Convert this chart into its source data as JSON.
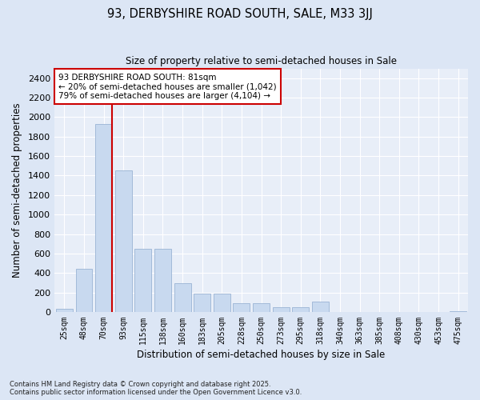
{
  "title": "93, DERBYSHIRE ROAD SOUTH, SALE, M33 3JJ",
  "subtitle": "Size of property relative to semi-detached houses in Sale",
  "xlabel": "Distribution of semi-detached houses by size in Sale",
  "ylabel": "Number of semi-detached properties",
  "categories": [
    "25sqm",
    "48sqm",
    "70sqm",
    "93sqm",
    "115sqm",
    "138sqm",
    "160sqm",
    "183sqm",
    "205sqm",
    "228sqm",
    "250sqm",
    "273sqm",
    "295sqm",
    "318sqm",
    "340sqm",
    "363sqm",
    "385sqm",
    "408sqm",
    "430sqm",
    "453sqm",
    "475sqm"
  ],
  "values": [
    30,
    440,
    1930,
    1450,
    650,
    650,
    295,
    185,
    185,
    90,
    90,
    50,
    50,
    110,
    0,
    0,
    0,
    0,
    0,
    0,
    10
  ],
  "bar_color": "#c8d9ef",
  "bar_edge_color": "#9ab4d4",
  "vline_bar_index": 2,
  "vline_color": "#cc0000",
  "annotation_text": "93 DERBYSHIRE ROAD SOUTH: 81sqm\n← 20% of semi-detached houses are smaller (1,042)\n79% of semi-detached houses are larger (4,104) →",
  "annotation_box_facecolor": "#ffffff",
  "annotation_box_edgecolor": "#cc0000",
  "ylim": [
    0,
    2500
  ],
  "yticks": [
    0,
    200,
    400,
    600,
    800,
    1000,
    1200,
    1400,
    1600,
    1800,
    2000,
    2200,
    2400
  ],
  "bg_color": "#dce6f5",
  "plot_bg_color": "#e8eef8",
  "grid_color": "#ffffff",
  "footer": "Contains HM Land Registry data © Crown copyright and database right 2025.\nContains public sector information licensed under the Open Government Licence v3.0."
}
